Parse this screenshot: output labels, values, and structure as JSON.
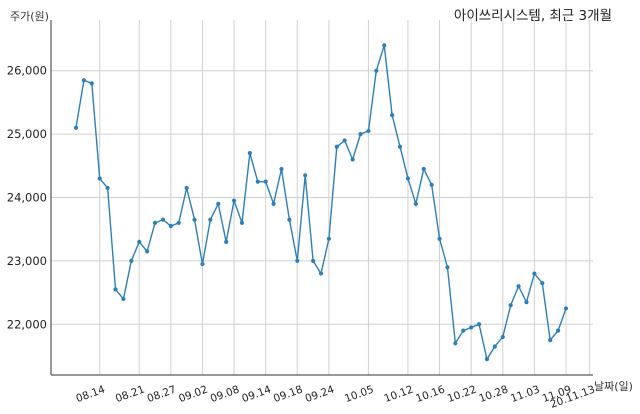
{
  "chart_data": {
    "type": "line",
    "title": "아이쓰리시스템, 최근 3개월",
    "ylabel": "주가(원)",
    "xlabel": "날짜(일)",
    "ylim": [
      21200,
      26800
    ],
    "yticks": [
      22000,
      23000,
      24000,
      25000,
      26000
    ],
    "ytick_labels": [
      "22,000",
      "23,000",
      "24,000",
      "25,000",
      "26,000"
    ],
    "xtick_labels": [
      "08.14",
      "08.21",
      "08.27",
      "09.02",
      "09.08",
      "09.14",
      "09.18",
      "09.24",
      "10.05",
      "10.12",
      "10.16",
      "10.22",
      "10.28",
      "11.03",
      "11.09",
      "20.11.13"
    ],
    "xtick_positions": [
      3,
      8,
      12,
      16,
      20,
      24,
      28,
      32,
      37,
      42,
      46,
      50,
      54,
      58,
      62,
      65
    ],
    "grid": true,
    "color": "#2e7fb8",
    "series": [
      {
        "name": "",
        "values": [
          25100,
          25850,
          25800,
          24300,
          24150,
          22550,
          22400,
          23000,
          23300,
          23150,
          23600,
          23650,
          23550,
          23600,
          24150,
          23650,
          22950,
          23650,
          23900,
          23300,
          23950,
          23600,
          24700,
          24250,
          24250,
          23900,
          24450,
          23650,
          23000,
          24350,
          23000,
          22800,
          23350,
          24800,
          24900,
          24600,
          25000,
          25050,
          26000,
          26400,
          25300,
          24800,
          24300,
          23900,
          24450,
          24200,
          23350,
          22900,
          21700,
          21900,
          21950,
          22000,
          21450,
          21650,
          21800,
          22300,
          22600,
          22350,
          22800,
          22650,
          21750,
          21900,
          22250
        ]
      }
    ]
  }
}
